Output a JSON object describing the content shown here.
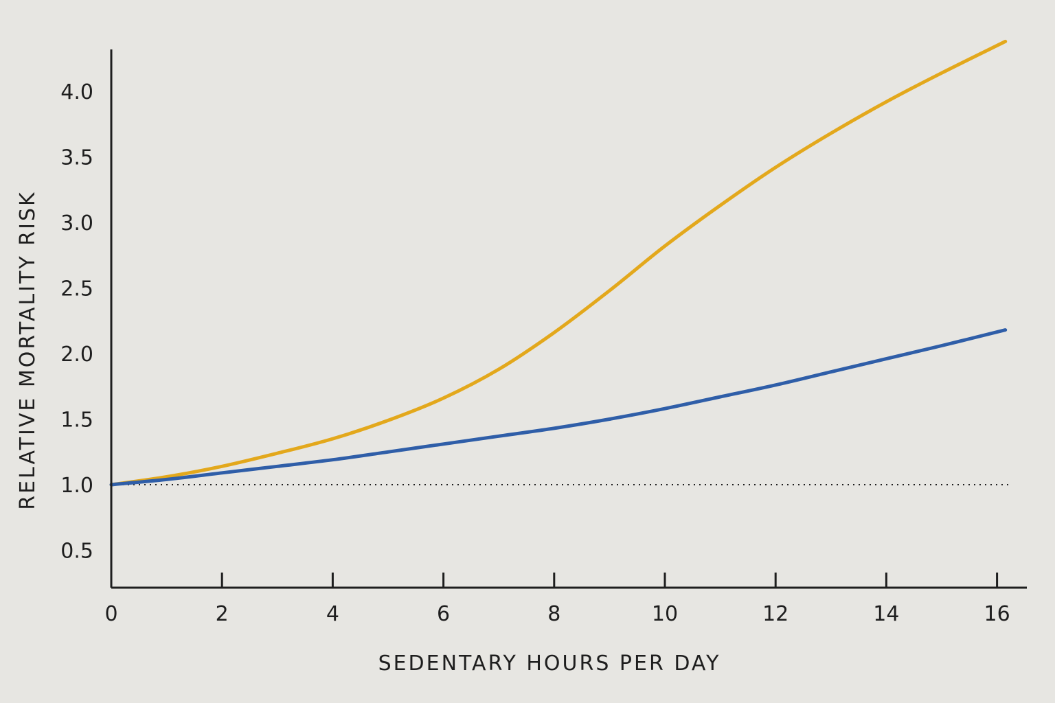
{
  "chart_data": {
    "type": "line",
    "title": "",
    "xlabel": "SEDENTARY HOURS PER DAY",
    "ylabel": "RELATIVE MORTALITY RISK",
    "xlim": [
      0,
      16.5
    ],
    "ylim": [
      0.25,
      4.35
    ],
    "x_ticks": [
      0,
      2,
      4,
      6,
      8,
      10,
      12,
      14,
      16
    ],
    "x_tick_labels": [
      "0",
      "2",
      "4",
      "6",
      "8",
      "10",
      "12",
      "14",
      "16"
    ],
    "y_ticks": [
      0.5,
      1.0,
      1.5,
      2.0,
      2.5,
      3.0,
      3.5,
      4.0
    ],
    "y_tick_labels": [
      "0.5",
      "1.0",
      "1.5",
      "2.0",
      "2.5",
      "3.0",
      "3.5",
      "4.0"
    ],
    "reference_line": {
      "y": 1.0,
      "style": "dotted"
    },
    "grid": false,
    "legend": "none",
    "series": [
      {
        "color": "#e3a81c",
        "x": [
          0,
          1,
          2,
          3,
          4,
          5,
          6,
          7,
          8,
          9,
          10,
          11,
          12,
          13,
          14,
          15,
          16.15
        ],
        "y": [
          1.0,
          1.06,
          1.14,
          1.24,
          1.35,
          1.49,
          1.66,
          1.88,
          2.16,
          2.48,
          2.82,
          3.13,
          3.42,
          3.68,
          3.92,
          4.14,
          4.38
        ]
      },
      {
        "color": "#2f5ea8",
        "x": [
          0,
          1,
          2,
          3,
          4,
          5,
          6,
          7,
          8,
          9,
          10,
          11,
          12,
          13,
          14,
          15,
          16.15
        ],
        "y": [
          1.0,
          1.04,
          1.09,
          1.14,
          1.19,
          1.25,
          1.31,
          1.37,
          1.43,
          1.5,
          1.58,
          1.67,
          1.76,
          1.86,
          1.96,
          2.06,
          2.18
        ]
      }
    ]
  }
}
